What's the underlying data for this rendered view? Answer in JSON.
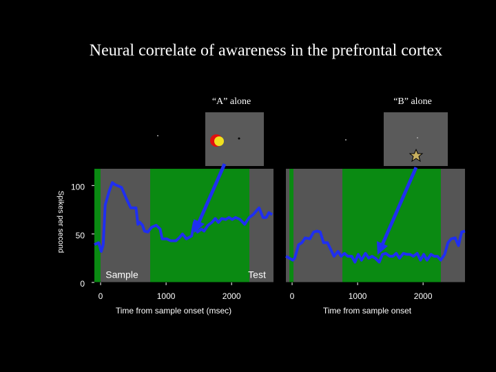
{
  "slide_title": "Neural correlate of awareness in the prefrontal cortex",
  "chart_data": [
    {
      "type": "line",
      "title": "“A” alone",
      "y_label": "Spikes per second",
      "x_label": "Time from sample onset (msec)",
      "annotations": [
        "Sample",
        "Test"
      ],
      "xlim": [
        -95,
        2640
      ],
      "ylim": [
        0,
        118
      ],
      "xticks": [
        0,
        1000,
        2000
      ],
      "yticks": [
        0,
        50,
        100
      ],
      "series": [
        {
          "color": "#1f2ff0",
          "x": [
            -95,
            -30,
            10,
            40,
            70,
            130,
            180,
            220,
            320,
            390,
            460,
            540,
            570,
            600,
            640,
            670,
            720,
            780,
            850,
            910,
            940,
            1010,
            1070,
            1150,
            1200,
            1250,
            1310,
            1390,
            1430,
            1480,
            1540,
            1580,
            1640,
            1700,
            1750,
            1800,
            1850,
            1910,
            1960,
            2010,
            2060,
            2130,
            2200,
            2270,
            2330,
            2380,
            2420,
            2480,
            2530,
            2570,
            2620
          ],
          "values": [
            39,
            41,
            32,
            39,
            80,
            94,
            103,
            101,
            98,
            87,
            77,
            77,
            60,
            62,
            59,
            53,
            52,
            57,
            59,
            55,
            45,
            45,
            43,
            43,
            46,
            50,
            45,
            48,
            62,
            52,
            55,
            53,
            59,
            62,
            66,
            62,
            66,
            65,
            67,
            65,
            67,
            65,
            60,
            67,
            70,
            74,
            77,
            67,
            67,
            72,
            70
          ]
        }
      ]
    },
    {
      "type": "line",
      "title": "“B” alone",
      "x_label": "Time from sample onset",
      "xlim": [
        -95,
        2640
      ],
      "ylim": [
        0,
        118
      ],
      "xticks": [
        0,
        1000,
        2000
      ],
      "series": [
        {
          "color": "#1f2ff0",
          "x": [
            -95,
            -40,
            10,
            40,
            100,
            150,
            200,
            270,
            330,
            380,
            430,
            480,
            540,
            590,
            640,
            700,
            750,
            800,
            850,
            910,
            960,
            1010,
            1060,
            1120,
            1170,
            1220,
            1270,
            1330,
            1380,
            1430,
            1490,
            1540,
            1590,
            1640,
            1700,
            1750,
            1800,
            1850,
            1910,
            1960,
            2010,
            2060,
            2120,
            2170,
            2220,
            2270,
            2330,
            2380,
            2430,
            2490,
            2540,
            2590,
            2640
          ],
          "values": [
            27,
            25,
            23,
            25,
            39,
            41,
            46,
            45,
            52,
            53,
            52,
            41,
            41,
            34,
            27,
            32,
            27,
            30,
            27,
            27,
            21,
            29,
            23,
            30,
            25,
            27,
            25,
            21,
            29,
            30,
            27,
            27,
            30,
            25,
            30,
            29,
            29,
            27,
            30,
            23,
            29,
            23,
            29,
            27,
            27,
            23,
            29,
            41,
            45,
            46,
            38,
            52,
            53
          ]
        }
      ]
    }
  ]
}
